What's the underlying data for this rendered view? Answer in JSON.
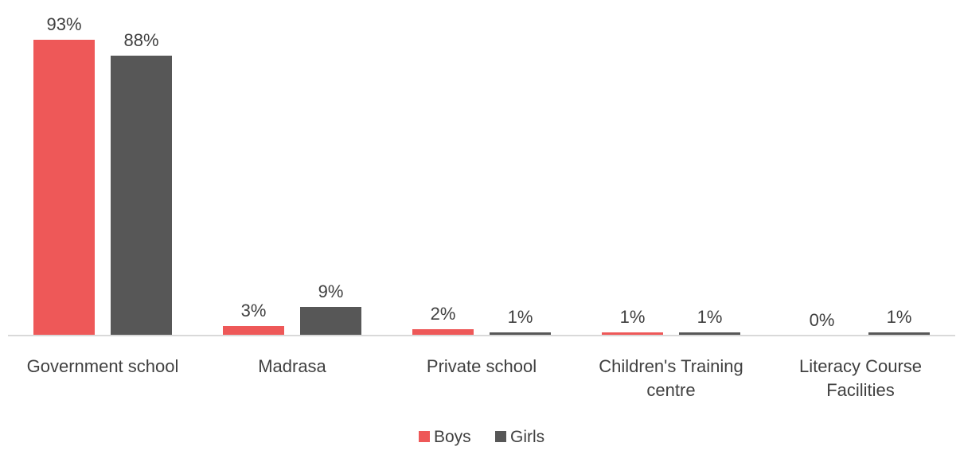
{
  "chart_data": {
    "type": "bar",
    "categories": [
      [
        "Government school"
      ],
      [
        "Madrasa"
      ],
      [
        "Private school"
      ],
      [
        "Children's Training",
        "centre"
      ],
      [
        "Literacy Course",
        "Facilities"
      ]
    ],
    "series": [
      {
        "name": "Boys",
        "values": [
          93,
          3,
          2,
          1,
          0
        ],
        "labels": [
          "93%",
          "3%",
          "2%",
          "1%",
          "0%"
        ],
        "color": "#EE5858"
      },
      {
        "name": "Girls",
        "values": [
          88,
          9,
          1,
          1,
          1
        ],
        "labels": [
          "88%",
          "9%",
          "1%",
          "1%",
          "1%"
        ],
        "color": "#575757"
      }
    ],
    "ylim": [
      0,
      93
    ],
    "grid": false,
    "legend_position": "bottom",
    "axis_color": "#D9D9D9"
  }
}
